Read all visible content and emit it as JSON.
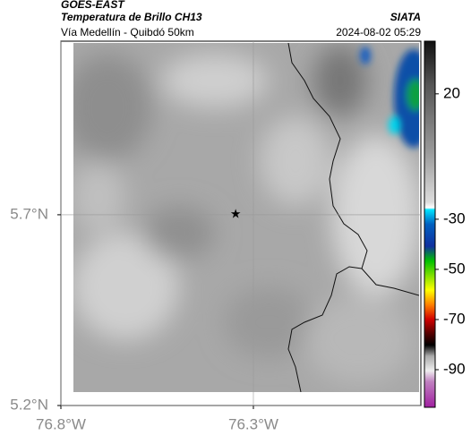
{
  "header": {
    "title": "GOES-EAST",
    "subtitle": "Temperatura de Brillo CH13",
    "source": "SIATA",
    "route": "Vía Medellín - Quibdó 50km",
    "timestamp": "2024-08-02 05:29"
  },
  "map": {
    "xlim": [
      -76.8,
      -75.865
    ],
    "ylim": [
      5.2,
      6.155
    ],
    "xticks": [
      {
        "value": -76.8,
        "label": "76.8°W"
      },
      {
        "value": -76.3,
        "label": "76.3°W"
      }
    ],
    "yticks": [
      {
        "value": 5.2,
        "label": "5.2°N"
      },
      {
        "value": 5.7,
        "label": "5.7°N"
      }
    ],
    "grid": true,
    "marker": {
      "lon": -76.346,
      "lat": 5.7
    }
  },
  "colorbar": {
    "lim": [
      -105,
      41
    ],
    "ticks": [
      20,
      -30,
      -50,
      -70,
      -90
    ]
  }
}
